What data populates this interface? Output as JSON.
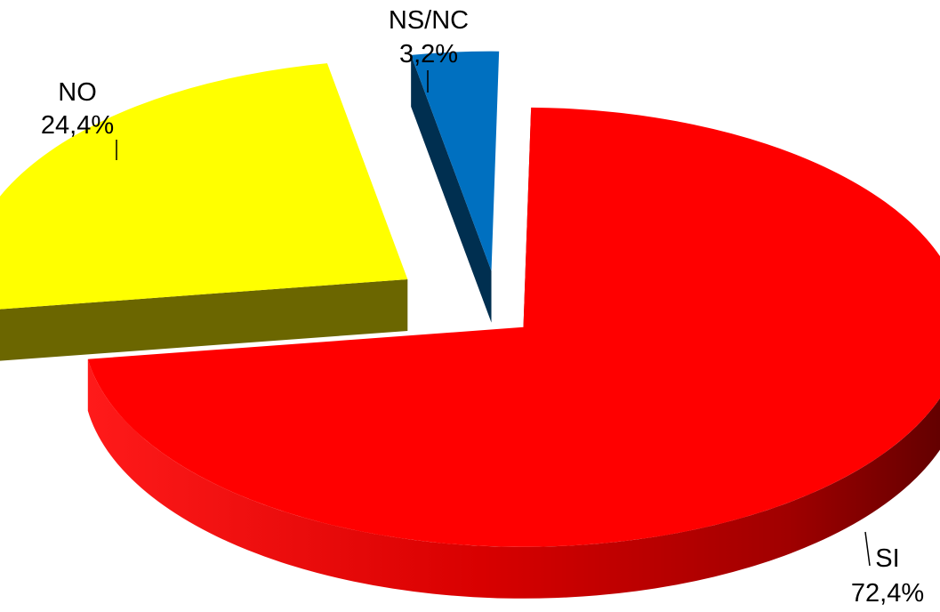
{
  "chart_data": {
    "type": "pie",
    "variant": "3d-exploded",
    "slices": [
      {
        "category": "SI",
        "value": 72.4,
        "value_label": "72,4%",
        "color": "#ff0000",
        "side_color": "#c00000"
      },
      {
        "category": "NO",
        "value": 24.4,
        "value_label": "24,4%",
        "color": "#ffff00",
        "side_color": "#6b6600"
      },
      {
        "category": "NS/NC",
        "value": 3.2,
        "value_label": "3,2%",
        "color": "#0070c0",
        "side_color": "#002f50"
      }
    ],
    "legend": "none",
    "labels_placement": "outside-with-leader-lines"
  }
}
